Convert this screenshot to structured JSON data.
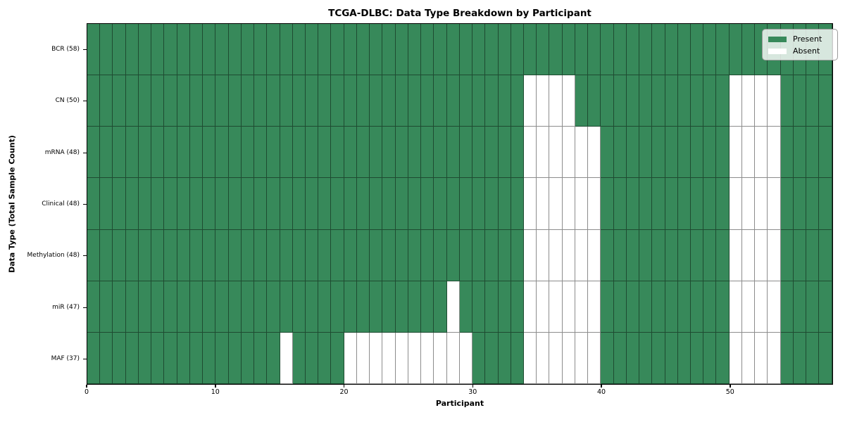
{
  "chart_data": {
    "type": "heatmap",
    "title": "TCGA-DLBC: Data Type Breakdown by Participant",
    "xlabel": "Participant",
    "ylabel": "Data Type (Total Sample Count)",
    "n_participants": 58,
    "x_ticks": [
      0,
      10,
      20,
      30,
      40,
      50
    ],
    "xlim": [
      0,
      58
    ],
    "grid": "cell-borders",
    "colors": {
      "present": "#37895a",
      "absent": "#ffffff"
    },
    "legend": {
      "position": "upper-right",
      "entries": [
        {
          "label": "Present",
          "color": "#37895a"
        },
        {
          "label": "Absent",
          "color": "#ffffff"
        }
      ]
    },
    "rows": [
      {
        "label": "BCR (58)",
        "absent_columns": []
      },
      {
        "label": "CN (50)",
        "absent_columns": [
          34,
          35,
          36,
          37,
          50,
          51,
          52,
          53
        ]
      },
      {
        "label": "mRNA (48)",
        "absent_columns": [
          34,
          35,
          36,
          37,
          38,
          39,
          50,
          51,
          52,
          53
        ]
      },
      {
        "label": "Clinical (48)",
        "absent_columns": [
          34,
          35,
          36,
          37,
          38,
          39,
          50,
          51,
          52,
          53
        ]
      },
      {
        "label": "Methylation (48)",
        "absent_columns": [
          34,
          35,
          36,
          37,
          38,
          39,
          50,
          51,
          52,
          53
        ]
      },
      {
        "label": "miR (47)",
        "absent_columns": [
          28,
          34,
          35,
          36,
          37,
          38,
          39,
          50,
          51,
          52,
          53
        ]
      },
      {
        "label": "MAF (37)",
        "absent_columns": [
          15,
          20,
          21,
          22,
          23,
          24,
          25,
          26,
          27,
          28,
          29,
          34,
          35,
          36,
          37,
          38,
          39,
          50,
          51,
          52,
          53
        ]
      }
    ]
  }
}
